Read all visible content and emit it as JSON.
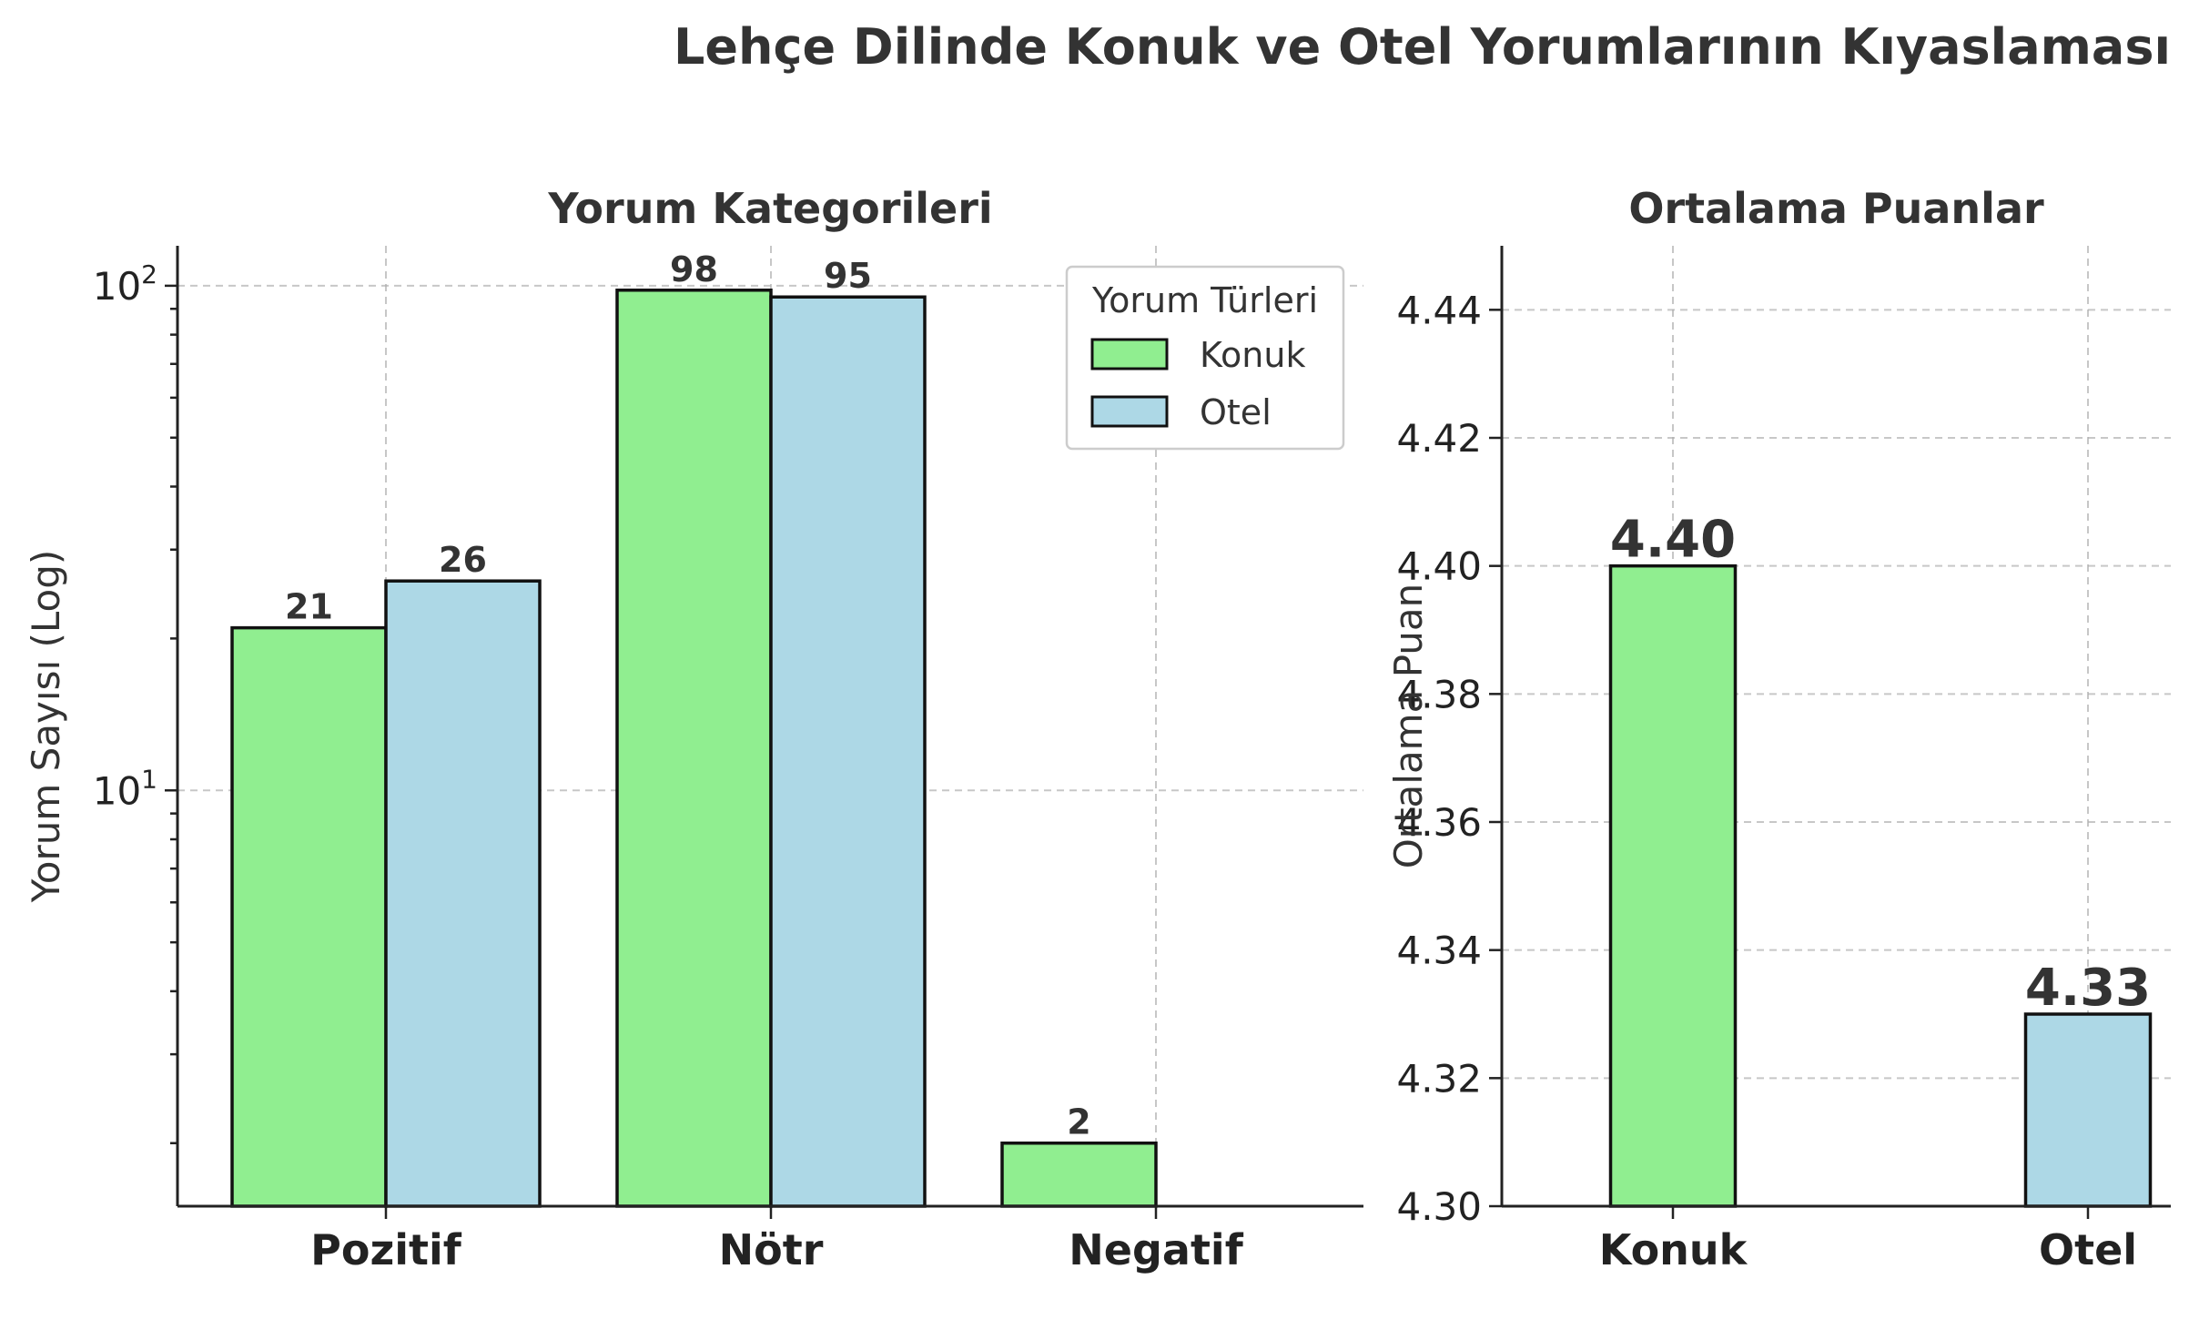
{
  "figure": {
    "title": "Lehçe Dilinde Konuk ve Otel Yorumlarının Kıyaslaması"
  },
  "chart_data": [
    {
      "type": "bar",
      "title": "Yorum Kategorileri",
      "xlabel": "",
      "ylabel": "Yorum Sayısı (Log)",
      "yscale": "log",
      "ylim": [
        1.5,
        120
      ],
      "categories": [
        "Pozitif",
        "Nötr",
        "Negatif"
      ],
      "yticks": [
        {
          "value": 10,
          "base": "10",
          "exp": "1"
        },
        {
          "value": 100,
          "base": "10",
          "exp": "2"
        }
      ],
      "series": [
        {
          "name": "Konuk",
          "color": "#90ee90",
          "values": [
            21,
            98,
            2
          ]
        },
        {
          "name": "Otel",
          "color": "#add8e6",
          "values": [
            26,
            95,
            0
          ]
        }
      ],
      "legend": {
        "title": "Yorum Türleri",
        "placement": "top-right"
      },
      "grid": true
    },
    {
      "type": "bar",
      "title": "Ortalama Puanlar",
      "xlabel": "",
      "ylabel": "Ortalama Puan",
      "ylim": [
        4.3,
        4.45
      ],
      "yticks": [
        "4.30",
        "4.32",
        "4.34",
        "4.36",
        "4.38",
        "4.40",
        "4.42",
        "4.44"
      ],
      "categories": [
        "Konuk",
        "Otel"
      ],
      "values": [
        4.4,
        4.33
      ],
      "value_labels": [
        "4.40",
        "4.33"
      ],
      "colors": [
        "#90ee90",
        "#add8e6"
      ],
      "grid": true
    }
  ]
}
